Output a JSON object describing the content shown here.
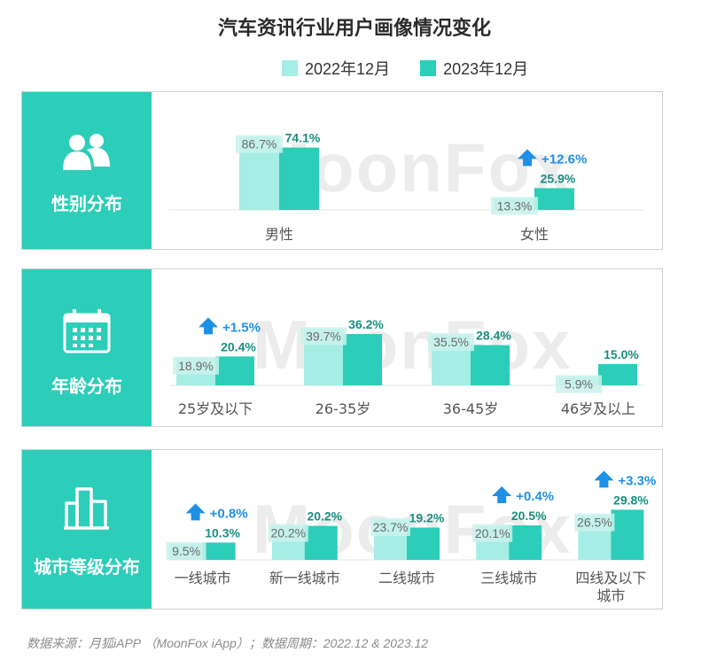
{
  "title": "汽车资讯行业用户画像情况变化",
  "legend": [
    {
      "label": "2022年12月",
      "color": "#a6ede5"
    },
    {
      "label": "2023年12月",
      "color": "#2ccdb9"
    }
  ],
  "watermark": "MoonFox",
  "footer": "数据来源：月狐iAPP （MoonFox iApp）；数据周期：2022.12 & 2023.12",
  "colors": {
    "accent": "#2ccdb9",
    "light": "#a6ede5",
    "arrow": "#1e90e6",
    "label_dark": "#1a8f80",
    "label_light": "#6a6a6a"
  },
  "panels": [
    {
      "label": "性别分布",
      "icon": "users-icon"
    },
    {
      "label": "年龄分布",
      "icon": "calendar-icon"
    },
    {
      "label": "城市等级分布",
      "icon": "buildings-icon"
    }
  ],
  "chart_data": [
    {
      "type": "bar",
      "title": "性别分布",
      "categories": [
        "男性",
        "女性"
      ],
      "series": [
        {
          "name": "2022年12月",
          "values": [
            86.7,
            13.3
          ]
        },
        {
          "name": "2023年12月",
          "values": [
            74.1,
            25.9
          ]
        }
      ],
      "value_labels": {
        "2022年12月": [
          "86.7%",
          "13.3%"
        ],
        "2023年12月": [
          "74.1%",
          "25.9%"
        ]
      },
      "changes": [
        null,
        "+12.6%"
      ]
    },
    {
      "type": "bar",
      "title": "年龄分布",
      "categories": [
        "25岁及以下",
        "26-35岁",
        "36-45岁",
        "46岁及以上"
      ],
      "series": [
        {
          "name": "2022年12月",
          "values": [
            18.9,
            39.7,
            35.5,
            5.9
          ]
        },
        {
          "name": "2023年12月",
          "values": [
            20.4,
            36.2,
            28.4,
            15.0
          ]
        }
      ],
      "value_labels": {
        "2022年12月": [
          "18.9%",
          "39.7%",
          "35.5%",
          "5.9%"
        ],
        "2023年12月": [
          "20.4%",
          "36.2%",
          "28.4%",
          "15.0%"
        ]
      },
      "changes": [
        "+1.5%",
        null,
        null,
        null
      ]
    },
    {
      "type": "bar",
      "title": "城市等级分布",
      "categories": [
        "一线城市",
        "新一线城市",
        "二线城市",
        "三线城市",
        "四线及以下城市"
      ],
      "category_lines": [
        [
          "一线城市"
        ],
        [
          "新一线城市"
        ],
        [
          "二线城市"
        ],
        [
          "三线城市"
        ],
        [
          "四线及以下",
          "城市"
        ]
      ],
      "series": [
        {
          "name": "2022年12月",
          "values": [
            9.5,
            20.2,
            23.7,
            20.1,
            26.5
          ]
        },
        {
          "name": "2023年12月",
          "values": [
            10.3,
            20.2,
            19.2,
            20.5,
            29.8
          ]
        }
      ],
      "value_labels": {
        "2022年12月": [
          "9.5%",
          "20.2%",
          "23.7%",
          "20.1%",
          "26.5%"
        ],
        "2023年12月": [
          "10.3%",
          "20.2%",
          "19.2%",
          "20.5%",
          "29.8%"
        ]
      },
      "changes": [
        "+0.8%",
        null,
        null,
        "+0.4%",
        "+3.3%"
      ]
    }
  ]
}
